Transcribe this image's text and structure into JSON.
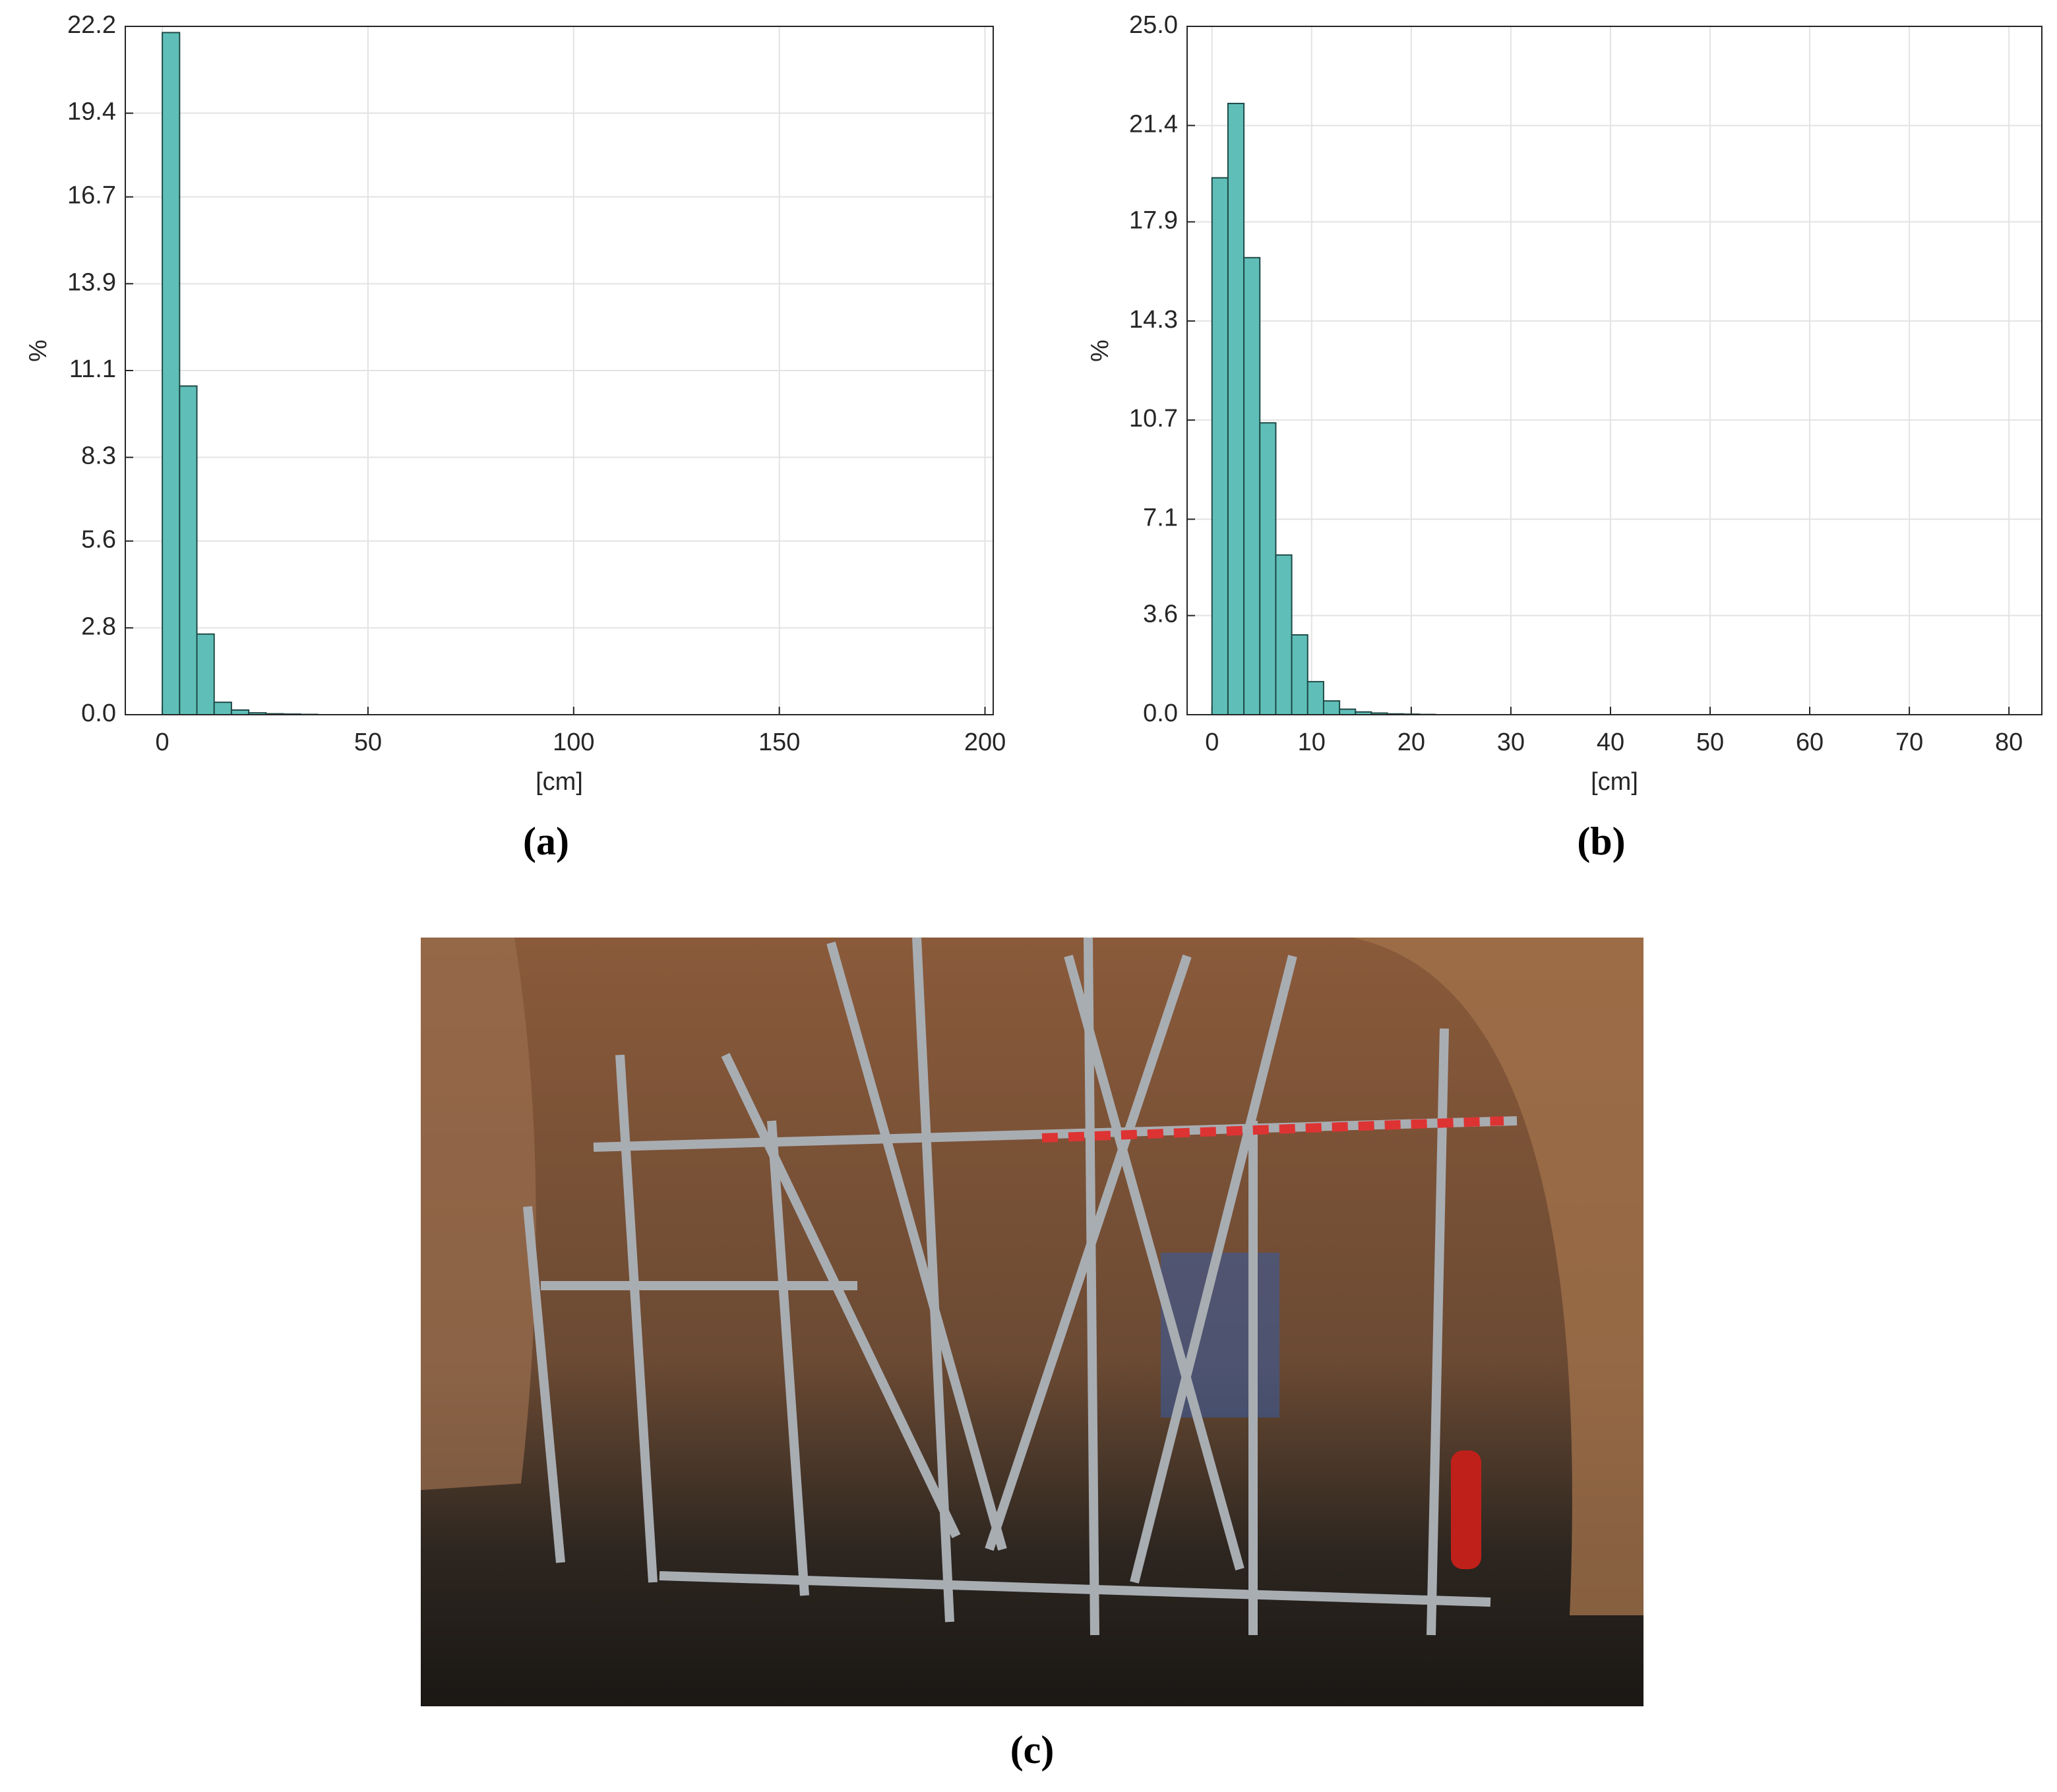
{
  "chart_data": [
    {
      "type": "histogram",
      "caption": "(a)",
      "xlabel": "[cm]",
      "ylabel": "%",
      "color": "#5fbfb8",
      "edgecolor": "#1f4a47",
      "grid": true,
      "bins": [
        0,
        4.2,
        8.4,
        12.6,
        16.8,
        21,
        25.2,
        29.4,
        33.6,
        37.8,
        42,
        46.2,
        50.4,
        54.6,
        58.8,
        63,
        67.2,
        71.4,
        75.6,
        79.8,
        84,
        88.2,
        92.4,
        96.6,
        100.8,
        105,
        109.2,
        113.4,
        117.6,
        121.8,
        126,
        130.2,
        134.4,
        138.6,
        142.8,
        147,
        151.2,
        155.4,
        159.6,
        163.8,
        168,
        172.2,
        176.4,
        180.6,
        184.8,
        189,
        193.2
      ],
      "values": [
        22.0,
        10.6,
        2.6,
        0.4,
        0.15,
        0.06,
        0.03,
        0.02,
        0.01,
        0,
        0,
        0,
        0,
        0,
        0,
        0,
        0,
        0,
        0,
        0,
        0,
        0,
        0,
        0,
        0,
        0,
        0,
        0,
        0,
        0,
        0,
        0,
        0,
        0,
        0,
        0,
        0,
        0,
        0,
        0,
        0,
        0,
        0,
        0,
        0,
        0
      ],
      "xlim": [
        -9,
        202
      ],
      "xticks": [
        0,
        50,
        100,
        150,
        200
      ],
      "ylim": [
        0,
        22.2
      ],
      "yticks": [
        {
          "value": 0,
          "label": "0.0"
        },
        2.8,
        5.6,
        8.3,
        11.1,
        13.9,
        16.7,
        19.4,
        22.2
      ]
    },
    {
      "type": "histogram",
      "caption": "(b)",
      "xlabel": "[cm]",
      "ylabel": "%",
      "color": "#5fbfb8",
      "edgecolor": "#1f4a47",
      "grid": true,
      "bins": [
        0,
        1.6,
        3.2,
        4.8,
        6.4,
        8,
        9.6,
        11.2,
        12.8,
        14.4,
        16,
        17.6,
        19.2,
        20.8,
        22.4,
        24,
        25.6,
        27.2,
        28.8,
        30.4,
        32,
        33.6,
        35.2,
        36.8,
        38.4,
        40,
        41.6,
        43.2,
        44.8,
        46.4,
        48,
        49.6,
        51.2,
        52.8,
        54.4,
        56,
        57.6,
        59.2,
        60.8,
        62.4,
        64,
        65.6,
        67.2,
        68.8,
        70.4,
        72,
        73.6,
        75.2,
        76.8,
        78.4,
        80
      ],
      "values": [
        19.5,
        22.2,
        16.6,
        10.6,
        5.8,
        2.9,
        1.2,
        0.5,
        0.2,
        0.1,
        0.06,
        0.03,
        0.02,
        0.01,
        0,
        0,
        0,
        0,
        0,
        0,
        0,
        0,
        0,
        0,
        0,
        0,
        0,
        0,
        0,
        0,
        0,
        0,
        0,
        0,
        0,
        0,
        0,
        0,
        0,
        0,
        0,
        0,
        0,
        0,
        0,
        0,
        0,
        0,
        0,
        0
      ],
      "xlim": [
        -2.5,
        83.3
      ],
      "xticks": [
        0,
        10,
        20,
        30,
        40,
        50,
        60,
        70,
        80
      ],
      "ylim": [
        0,
        25
      ],
      "yticks": [
        {
          "value": 0,
          "label": "0.0"
        },
        3.6,
        7.1,
        10.7,
        14.3,
        17.9,
        21.4,
        {
          "value": 25,
          "label": "25.0"
        }
      ]
    }
  ],
  "photo": {
    "caption": "(c)"
  }
}
